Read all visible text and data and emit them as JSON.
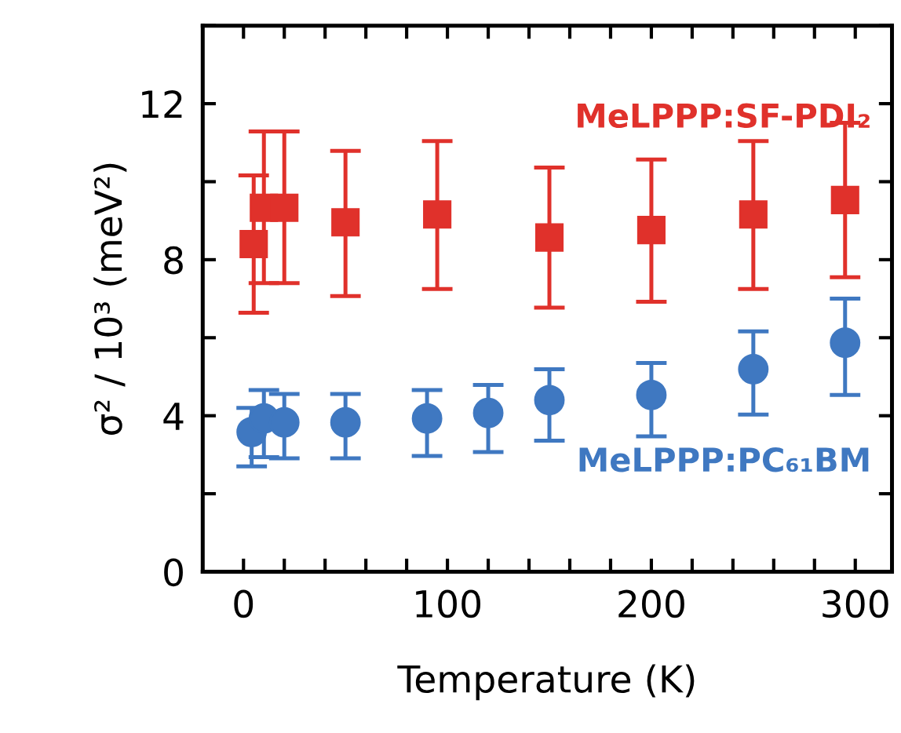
{
  "chart_data": {
    "type": "scatter",
    "xlabel": "Temperature (K)",
    "ylabel": "σ² / 10³ (meV²)",
    "xlim": [
      -20,
      318
    ],
    "ylim": [
      0,
      14
    ],
    "xticks": [
      0,
      {
        "value": 20,
        "label": null
      },
      {
        "value": 40,
        "label": null
      },
      {
        "value": 60,
        "label": null
      },
      {
        "value": 80,
        "label": null
      },
      100,
      {
        "value": 120,
        "label": null
      },
      {
        "value": 140,
        "label": null
      },
      {
        "value": 160,
        "label": null
      },
      {
        "value": 180,
        "label": null
      },
      200,
      {
        "value": 220,
        "label": null
      },
      {
        "value": 240,
        "label": null
      },
      {
        "value": 260,
        "label": null
      },
      {
        "value": 280,
        "label": null
      },
      300
    ],
    "yticks": [
      0,
      {
        "value": 2,
        "label": null
      },
      4,
      {
        "value": 6,
        "label": null
      },
      8,
      {
        "value": 10,
        "label": null
      },
      12,
      {
        "value": 14,
        "label": null
      }
    ],
    "grid": false,
    "legend": false,
    "series": [
      {
        "name": "MeLPPP:SF-PDI₂",
        "color": "#e0312b",
        "marker": "square",
        "x": [
          5,
          10,
          20,
          50,
          95,
          150,
          200,
          250,
          295
        ],
        "values": [
          8.4,
          9.33,
          9.33,
          8.96,
          9.16,
          8.57,
          8.76,
          9.16,
          9.53
        ],
        "errors": [
          [
            6.64,
            10.16
          ],
          [
            7.4,
            11.29
          ],
          [
            7.4,
            11.29
          ],
          [
            7.07,
            10.79
          ],
          [
            7.25,
            11.04
          ],
          [
            6.77,
            10.36
          ],
          [
            6.92,
            10.57
          ],
          [
            7.25,
            11.04
          ],
          [
            7.55,
            11.51
          ]
        ]
      },
      {
        "name": "MeLPPP:PC₆₁BM",
        "color": "#3f78c1",
        "marker": "circle",
        "x": [
          4,
          10,
          20,
          50,
          90,
          120,
          150,
          200,
          250,
          295
        ],
        "values": [
          3.58,
          3.93,
          3.83,
          3.83,
          3.93,
          4.07,
          4.4,
          4.53,
          5.19,
          5.87
        ],
        "errors": [
          [
            2.7,
            4.2
          ],
          [
            2.94,
            4.66
          ],
          [
            2.91,
            4.56
          ],
          [
            2.91,
            4.56
          ],
          [
            2.97,
            4.66
          ],
          [
            3.07,
            4.79
          ],
          [
            3.36,
            5.19
          ],
          [
            3.47,
            5.35
          ],
          [
            4.03,
            6.16
          ],
          [
            4.53,
            7.0
          ]
        ]
      }
    ]
  }
}
